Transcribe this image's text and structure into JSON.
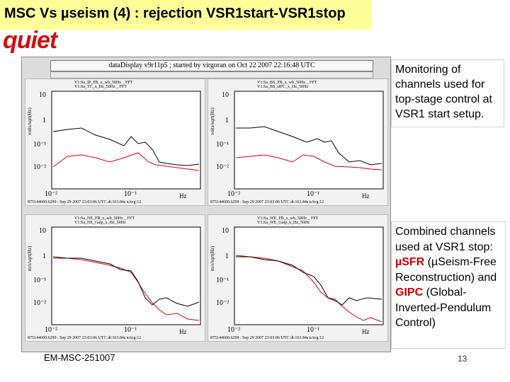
{
  "slide": {
    "title": "MSC Vs µseism (4) : rejection VSR1start-VSR1stop",
    "badge": "quiet",
    "footer": "EM-MSC-251007",
    "page_number": "13"
  },
  "display": {
    "header": "dataDisplay v9r11p5 ; started by virgoran on Oct 22 2007 22:16:48 UTC"
  },
  "panels": [
    {
      "legend": [
        "V1:Sa_IP_FB_x_wb_50Hz _ FFT",
        "V1:Sa_TC_x_Hz_50Hz _ FFT"
      ],
      "ylabel": "volts/sqrt(Hz)",
      "yticks": [
        "10",
        "1",
        "10⁻¹",
        "10⁻²"
      ],
      "xticks": [
        "10⁻²",
        "10⁻¹"
      ],
      "xunit": "Hz",
      "footer": "875144600.6299 : Sep 29 2007 23:03:06 UTC dt:163.84s nAvg:12"
    },
    {
      "legend": [
        "V1:Sa_BS_FB_x_wb_50Hz _ FFT",
        "V1:Sa_BS_sIPC_x_Hz_50Hz"
      ],
      "ylabel": "volts/sqrt(Hz)",
      "yticks": [
        "10",
        "1",
        "10⁻¹",
        "10⁻²"
      ],
      "xticks": [
        "10⁻²",
        "10⁻¹"
      ],
      "xunit": "Hz",
      "footer": "875144600.6299 : Sep 29 2007 23:03:06 UTC dt:163.84s nAvg:12"
    },
    {
      "legend": [
        "V1:Sa_NE_FB_x_wb_50Hz _ FFT",
        "V1:Sa_NE_Gaip_x_Hz_50Hz"
      ],
      "ylabel": "m/s/sqrt(Hz)",
      "yticks": [
        "10",
        "1",
        "10⁻¹",
        "10⁻²"
      ],
      "xticks": [
        "10⁻²",
        "10⁻¹"
      ],
      "xunit": "Hz",
      "footer": "875144600.6299 : Sep 29 2007 23:03:06 UTC dt:163.84s nAvg:12"
    },
    {
      "legend": [
        "V1:Sa_WE_FB_x_wb_50Hz _ FFT",
        "V1:Sa_WE_Gaip_x_Hz_50Hz"
      ],
      "ylabel": "m/s/sqrt(Hz)",
      "yticks": [
        "10",
        "1",
        "10⁻¹",
        "10⁻²"
      ],
      "xticks": [
        "10⁻²",
        "10⁻¹"
      ],
      "xunit": "Hz",
      "footer": "875144600.6299 : Sep 29 2007 23:03:06 UTC dt:163.84s nAvg:12"
    }
  ],
  "notes": {
    "start": "Monitoring of channels used for top-stage control at VSR1 start setup.",
    "stop_intro": "Combined channels used at VSR1 stop:",
    "sfr_label": "µSFR",
    "sfr_desc": "(µSeism-Free Reconstruction) and",
    "gipc_label": "GIPC",
    "gipc_desc": "(Global-Inverted-Pendulum Control)"
  },
  "colors": {
    "title_bg": "#ffff99",
    "accent_red": "#cc0000",
    "trace_black": "#000000",
    "trace_red": "#dd0000"
  }
}
